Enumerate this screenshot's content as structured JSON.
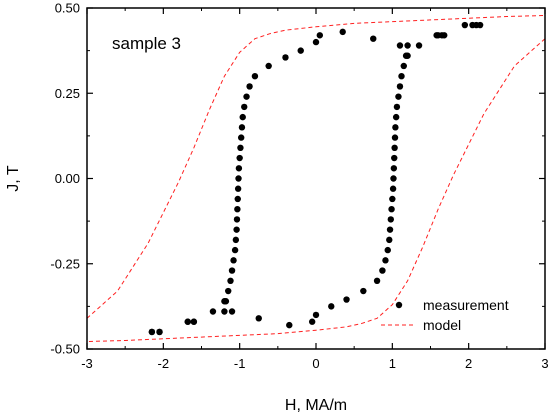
{
  "chart_data": {
    "type": "scatter",
    "annotation": "sample 3",
    "xlabel": "H, MA/m",
    "ylabel": "J, T",
    "xlim": [
      -3,
      3
    ],
    "ylim": [
      -0.5,
      0.5
    ],
    "x_ticks": [
      -3,
      -2,
      -1,
      0,
      1,
      2,
      3
    ],
    "x_tick_labels": [
      "-3",
      "-2",
      "-1",
      "0",
      "1",
      "2",
      "3"
    ],
    "y_ticks": [
      -0.5,
      -0.25,
      0,
      0.25,
      0.5
    ],
    "y_tick_labels": [
      "-0.50",
      "-0.25",
      "0.00",
      "0.25",
      "0.50"
    ],
    "legend_position": "bottom-right",
    "colors": {
      "measurement": "#000000",
      "model": "#ff2020"
    },
    "series": [
      {
        "name": "measurement",
        "style": "points",
        "branches": [
          {
            "x": [
              2.1,
              1.95,
              1.65,
              1.58,
              1.2,
              1.18,
              1.15,
              1.12,
              1.1,
              1.08,
              1.06,
              1.05,
              1.04,
              1.035,
              1.03,
              1.025,
              1.02,
              1.015,
              1.01,
              1.0,
              0.99,
              0.98,
              0.97,
              0.96,
              0.94,
              0.91,
              0.87,
              0.8,
              0.62,
              0.4,
              0.2,
              0.0,
              -0.05,
              -0.35,
              -0.75,
              -1.1,
              -1.2,
              -1.35,
              -1.6,
              -1.68,
              -2.05,
              -2.15
            ],
            "y": [
              0.45,
              0.45,
              0.42,
              0.42,
              0.39,
              0.36,
              0.33,
              0.3,
              0.27,
              0.24,
              0.21,
              0.18,
              0.15,
              0.12,
              0.09,
              0.06,
              0.03,
              0.0,
              -0.03,
              -0.06,
              -0.09,
              -0.12,
              -0.15,
              -0.18,
              -0.21,
              -0.24,
              -0.27,
              -0.3,
              -0.33,
              -0.355,
              -0.375,
              -0.4,
              -0.42,
              -0.43,
              -0.41,
              -0.39,
              -0.36,
              -0.39,
              -0.42,
              -0.42,
              -0.45,
              -0.45
            ]
          },
          {
            "x": [
              -2.15,
              -2.05,
              -1.68,
              -1.6,
              -1.2,
              -1.18,
              -1.15,
              -1.12,
              -1.1,
              -1.08,
              -1.06,
              -1.05,
              -1.04,
              -1.035,
              -1.03,
              -1.025,
              -1.02,
              -1.015,
              -1.01,
              -1.0,
              -0.99,
              -0.98,
              -0.97,
              -0.96,
              -0.94,
              -0.91,
              -0.87,
              -0.8,
              -0.62,
              -0.4,
              -0.2,
              0.0,
              0.05,
              0.35,
              0.75,
              1.1,
              1.2,
              1.35,
              1.6,
              1.68,
              2.05,
              2.15
            ],
            "y": [
              -0.45,
              -0.45,
              -0.42,
              -0.42,
              -0.39,
              -0.36,
              -0.33,
              -0.3,
              -0.27,
              -0.24,
              -0.21,
              -0.18,
              -0.15,
              -0.12,
              -0.09,
              -0.06,
              -0.03,
              0.0,
              0.03,
              0.06,
              0.09,
              0.12,
              0.15,
              0.18,
              0.21,
              0.24,
              0.27,
              0.3,
              0.33,
              0.355,
              0.375,
              0.4,
              0.42,
              0.43,
              0.41,
              0.39,
              0.36,
              0.39,
              0.42,
              0.42,
              0.45,
              0.45
            ]
          }
        ]
      },
      {
        "name": "model",
        "style": "dashed-line",
        "branches": [
          {
            "x": [
              3.0,
              2.6,
              2.2,
              2.0,
              1.8,
              1.6,
              1.4,
              1.2,
              1.0,
              0.8,
              0.6,
              0.4,
              0.2,
              0.0,
              -0.5,
              -1.0,
              -1.5,
              -2.0,
              -2.5,
              -3.0
            ],
            "y": [
              0.41,
              0.33,
              0.19,
              0.1,
              0.01,
              -0.09,
              -0.2,
              -0.3,
              -0.37,
              -0.41,
              -0.425,
              -0.435,
              -0.44,
              -0.445,
              -0.455,
              -0.46,
              -0.465,
              -0.47,
              -0.475,
              -0.478
            ]
          },
          {
            "x": [
              -3.0,
              -2.6,
              -2.2,
              -2.0,
              -1.8,
              -1.6,
              -1.4,
              -1.2,
              -1.0,
              -0.8,
              -0.6,
              -0.4,
              -0.2,
              0.0,
              0.5,
              1.0,
              1.5,
              2.0,
              2.5,
              3.0
            ],
            "y": [
              -0.41,
              -0.33,
              -0.19,
              -0.1,
              -0.01,
              0.09,
              0.2,
              0.3,
              0.37,
              0.41,
              0.425,
              0.435,
              0.44,
              0.445,
              0.455,
              0.46,
              0.465,
              0.47,
              0.475,
              0.478
            ]
          }
        ]
      }
    ]
  }
}
